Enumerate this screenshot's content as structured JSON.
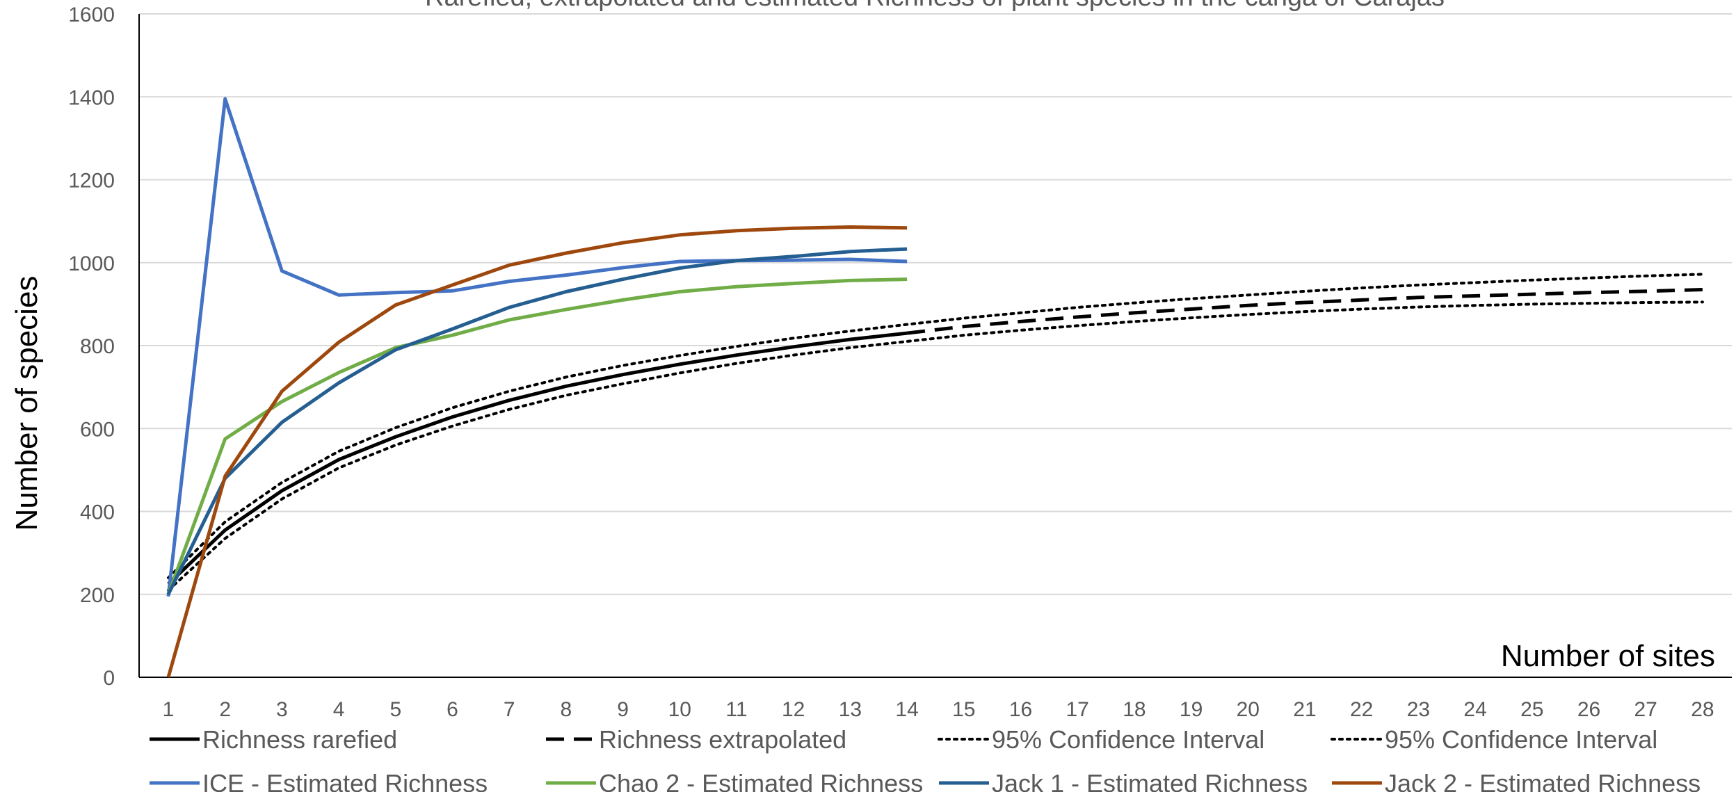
{
  "chart_data": {
    "type": "line",
    "title": "Rarefied, extrapolated and estimated Richness of plant species in the canga of Carajás",
    "xlabel": "Number of sites",
    "ylabel": "Number of species",
    "x": [
      1,
      2,
      3,
      4,
      5,
      6,
      7,
      8,
      9,
      10,
      11,
      12,
      13,
      14,
      15,
      16,
      17,
      18,
      19,
      20,
      21,
      22,
      23,
      24,
      25,
      26,
      27,
      28
    ],
    "xlim": [
      1,
      28
    ],
    "ylim": [
      0,
      1600
    ],
    "yticks": [
      0,
      200,
      400,
      600,
      800,
      1000,
      1200,
      1400,
      1600
    ],
    "grid": true,
    "legend_position": "bottom",
    "series": [
      {
        "name": "Richness rarefied",
        "color": "#000000",
        "dash": "solid",
        "x": [
          1,
          2,
          3,
          4,
          5,
          6,
          7,
          8,
          9,
          10,
          11,
          12,
          13,
          14
        ],
        "y": [
          225,
          355,
          450,
          525,
          580,
          628,
          668,
          702,
          730,
          755,
          777,
          797,
          815,
          830
        ]
      },
      {
        "name": "Richness extrapolated",
        "color": "#000000",
        "dash": "dash",
        "x": [
          14,
          15,
          16,
          17,
          18,
          19,
          20,
          21,
          22,
          23,
          24,
          25,
          26,
          27,
          28
        ],
        "y": [
          830,
          846,
          858,
          869,
          879,
          888,
          897,
          904,
          910,
          916,
          920,
          924,
          928,
          931,
          935
        ]
      },
      {
        "name": "95% Confidence Interval",
        "color": "#000000",
        "dash": "dot",
        "x": [
          1,
          2,
          3,
          4,
          5,
          6,
          7,
          8,
          9,
          10,
          11,
          12,
          13,
          14,
          15,
          16,
          17,
          18,
          19,
          20,
          21,
          22,
          23,
          24,
          25,
          26,
          27,
          28
        ],
        "y": [
          240,
          375,
          470,
          545,
          602,
          650,
          690,
          724,
          752,
          776,
          798,
          818,
          835,
          851,
          866,
          879,
          892,
          903,
          913,
          922,
          931,
          939,
          946,
          952,
          958,
          963,
          968,
          972
        ]
      },
      {
        "name": "95% Confidence Interval",
        "color": "#000000",
        "dash": "dot",
        "x": [
          1,
          2,
          3,
          4,
          5,
          6,
          7,
          8,
          9,
          10,
          11,
          12,
          13,
          14,
          15,
          16,
          17,
          18,
          19,
          20,
          21,
          22,
          23,
          24,
          25,
          26,
          27,
          28
        ],
        "y": [
          210,
          335,
          430,
          505,
          560,
          606,
          646,
          680,
          708,
          734,
          757,
          777,
          795,
          810,
          825,
          837,
          848,
          858,
          867,
          875,
          882,
          888,
          893,
          897,
          900,
          902,
          904,
          905
        ]
      },
      {
        "name": "ICE - Estimated Richness",
        "color": "#4472c4",
        "dash": "solid",
        "x": [
          1,
          2,
          3,
          4,
          5,
          6,
          7,
          8,
          9,
          10,
          11,
          12,
          13,
          14
        ],
        "y": [
          195,
          1395,
          980,
          922,
          928,
          932,
          955,
          970,
          988,
          1003,
          1005,
          1006,
          1008,
          1003
        ]
      },
      {
        "name": "Chao 2 - Estimated Richness",
        "color": "#70ad47",
        "dash": "solid",
        "x": [
          1,
          2,
          3,
          4,
          5,
          6,
          7,
          8,
          9,
          10,
          11,
          12,
          13,
          14
        ],
        "y": [
          200,
          575,
          665,
          735,
          795,
          825,
          862,
          887,
          910,
          930,
          942,
          950,
          957,
          960
        ]
      },
      {
        "name": "Jack 1 - Estimated Richness",
        "color": "#255e91",
        "dash": "solid",
        "x": [
          1,
          2,
          3,
          4,
          5,
          6,
          7,
          8,
          9,
          10,
          11,
          12,
          13,
          14
        ],
        "y": [
          200,
          480,
          615,
          710,
          790,
          840,
          892,
          930,
          960,
          987,
          1005,
          1015,
          1027,
          1033
        ]
      },
      {
        "name": "Jack 2 - Estimated Richness",
        "color": "#9e480e",
        "dash": "solid",
        "x": [
          1,
          2,
          3,
          4,
          5,
          6,
          7,
          8,
          9,
          10,
          11,
          12,
          13,
          14
        ],
        "y": [
          0,
          485,
          690,
          808,
          898,
          946,
          994,
          1023,
          1048,
          1067,
          1077,
          1083,
          1086,
          1084
        ]
      }
    ]
  }
}
